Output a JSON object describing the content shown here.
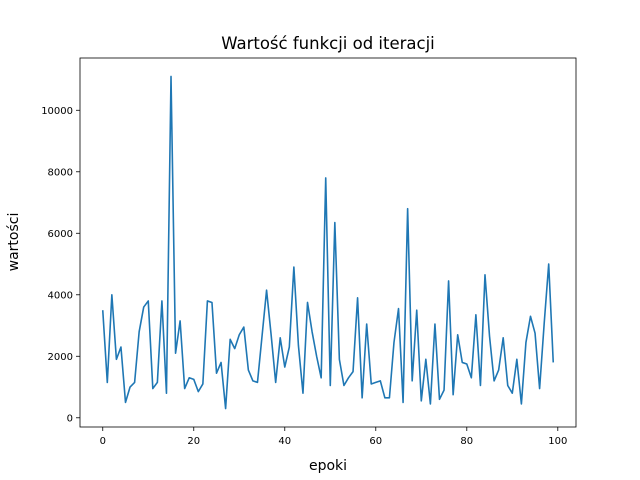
{
  "chart_data": {
    "type": "line",
    "title": "Wartość funkcji od iteracji",
    "xlabel": "epoki",
    "ylabel": "wartości",
    "xlim": [
      -5,
      104
    ],
    "ylim": [
      -300,
      11700
    ],
    "xticks": [
      0,
      20,
      40,
      60,
      80,
      100
    ],
    "yticks": [
      0,
      2000,
      4000,
      6000,
      8000,
      10000
    ],
    "grid": false,
    "color": "#1f77b4",
    "series": [
      {
        "x": [
          0,
          1,
          2,
          3,
          4,
          5,
          6,
          7,
          8,
          9,
          10,
          11,
          12,
          13,
          14,
          15,
          16,
          17,
          18,
          19,
          20,
          21,
          22,
          23,
          24,
          25,
          26,
          27,
          28,
          29,
          30,
          31,
          32,
          33,
          34,
          35,
          36,
          37,
          38,
          39,
          40,
          41,
          42,
          43,
          44,
          45,
          46,
          47,
          48,
          49,
          50,
          51,
          52,
          53,
          54,
          55,
          56,
          57,
          58,
          59,
          60,
          61,
          62,
          63,
          64,
          65,
          66,
          67,
          68,
          69,
          70,
          71,
          72,
          73,
          74,
          75,
          76,
          77,
          78,
          79,
          80,
          81,
          82,
          83,
          84,
          85,
          86,
          87,
          88,
          89,
          90,
          91,
          92,
          93,
          94,
          95,
          96,
          97,
          98,
          99
        ],
        "values": [
          3500,
          1150,
          4000,
          1900,
          2300,
          500,
          1000,
          1150,
          2800,
          3600,
          3800,
          950,
          1150,
          3800,
          800,
          11100,
          2100,
          3150,
          950,
          1300,
          1250,
          850,
          1100,
          3800,
          3750,
          1450,
          1800,
          300,
          2550,
          2250,
          2700,
          2950,
          1550,
          1200,
          1150,
          2650,
          4150,
          2700,
          1150,
          2600,
          1650,
          2300,
          4900,
          2350,
          800,
          3750,
          2800,
          2000,
          1300,
          7800,
          1050,
          6350,
          1900,
          1050,
          1300,
          1500,
          3900,
          650,
          3050,
          1100,
          1150,
          1200,
          650,
          650,
          2450,
          3550,
          500,
          6800,
          1200,
          3500,
          550,
          1900,
          450,
          3050,
          600,
          900,
          4450,
          750,
          2700,
          1800,
          1750,
          1300,
          3350,
          1050,
          4650,
          2650,
          1200,
          1550,
          2600,
          1050,
          800,
          1900,
          450,
          2450,
          3300,
          2750,
          950,
          3050,
          5000,
          1800
        ]
      }
    ]
  }
}
